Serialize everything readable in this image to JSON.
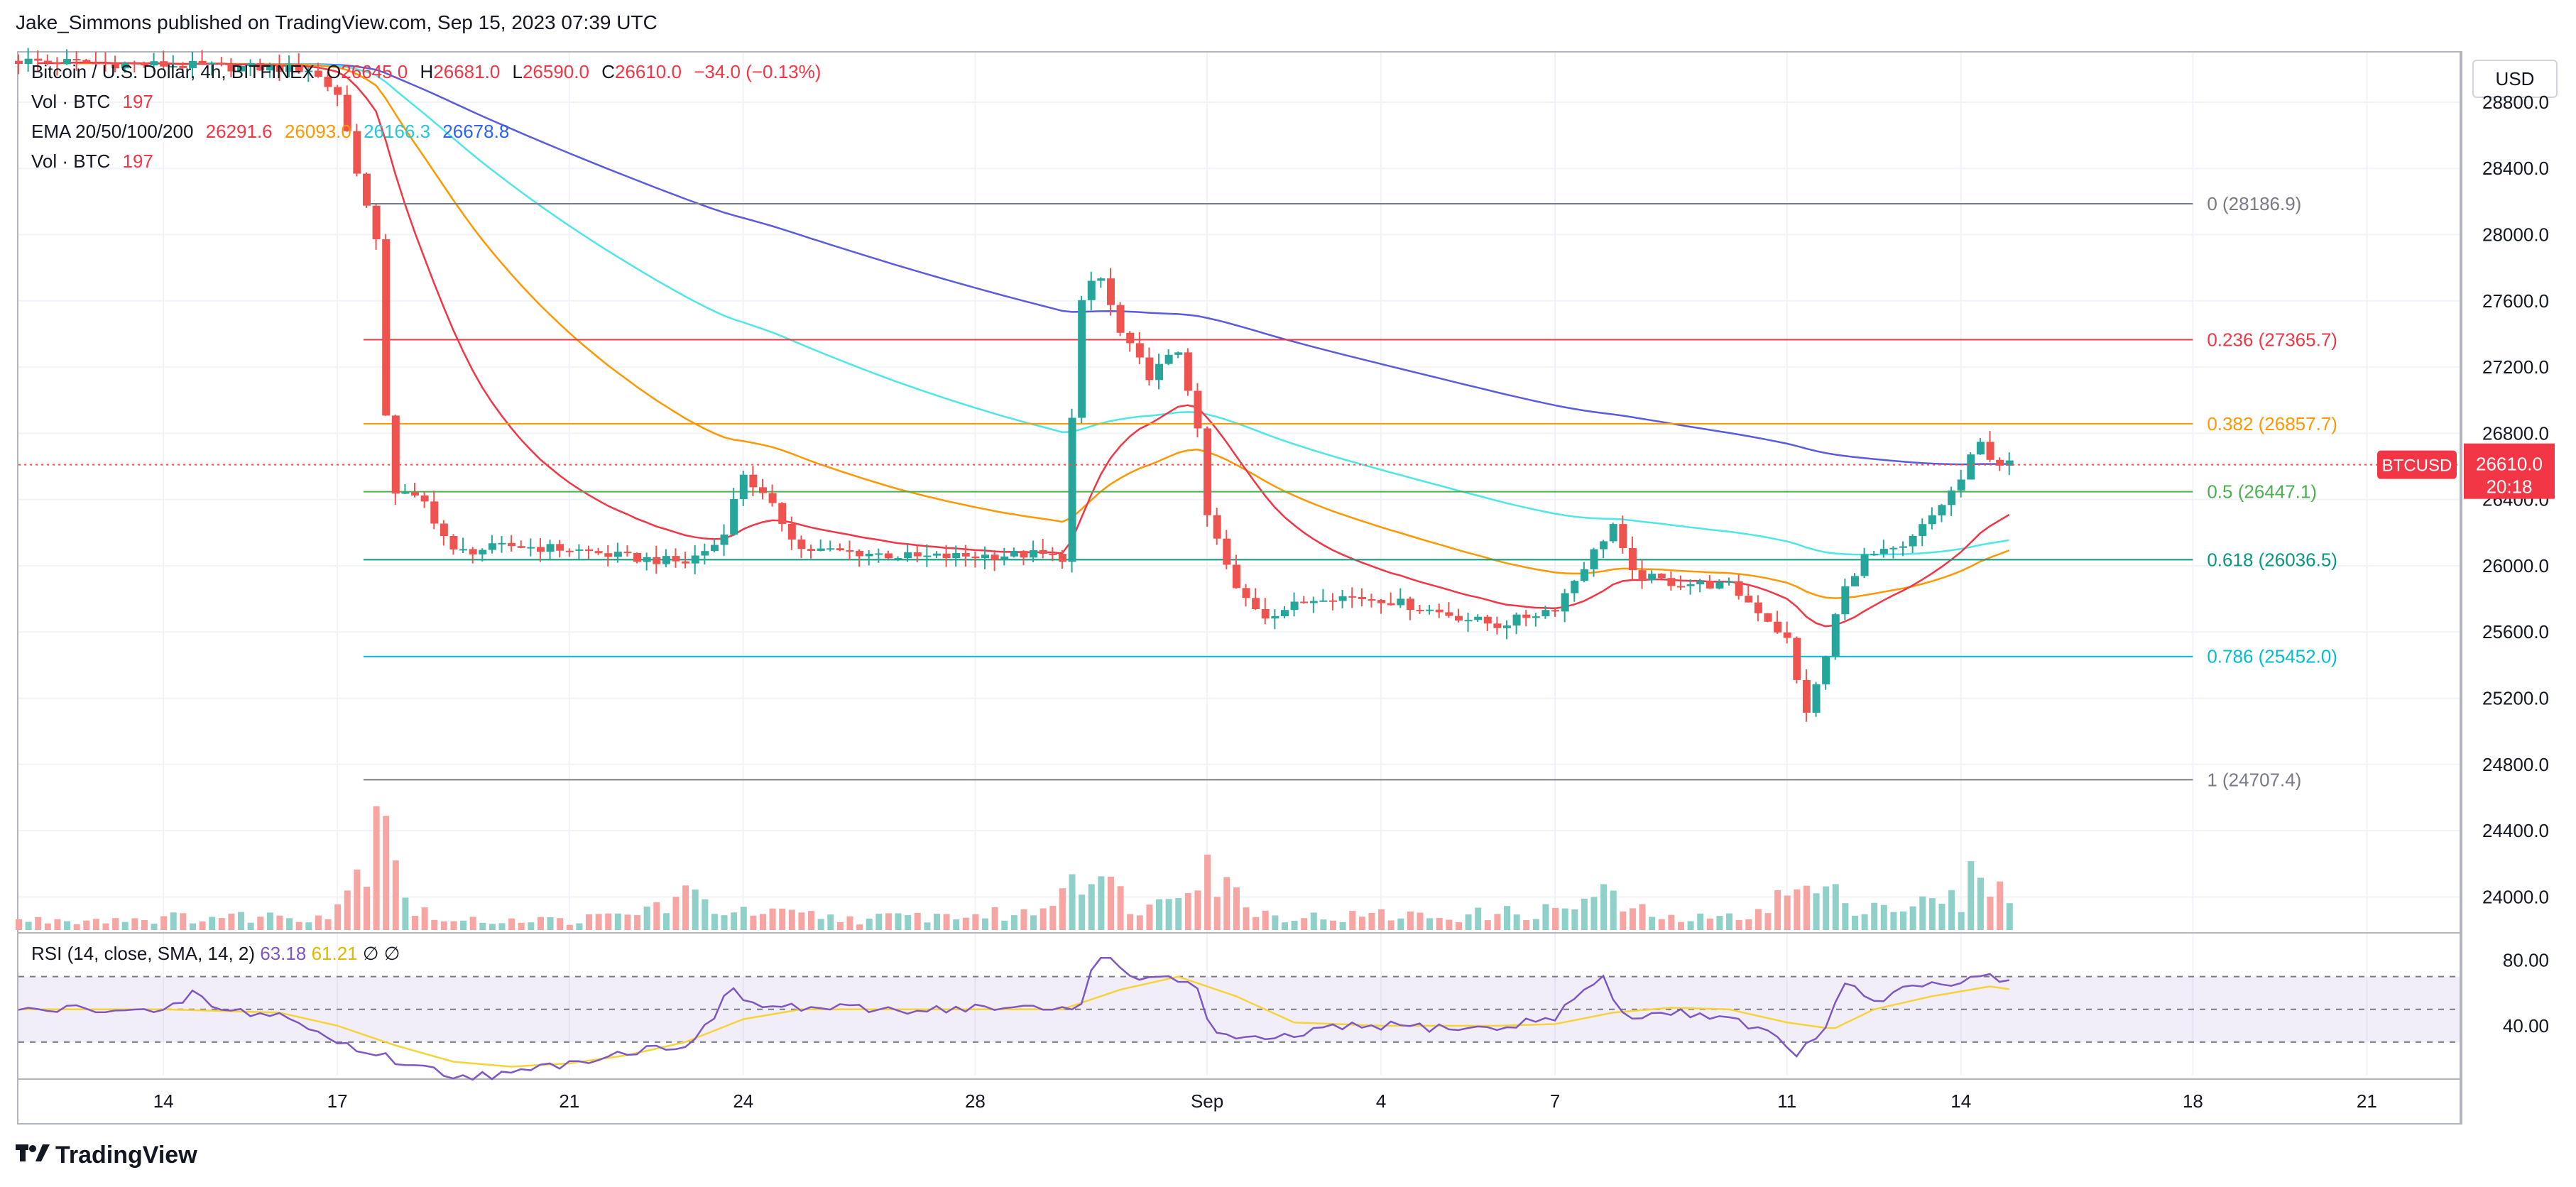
{
  "publisher_line": "Jake_Simmons published on TradingView.com, Sep 15, 2023 07:39 UTC",
  "currency": "USD",
  "footer_brand": "TradingView",
  "legend": {
    "symbol": "Bitcoin / U.S. Dollar, 4h, BITFINEX",
    "open_label": "O",
    "open": "26645.0",
    "high_label": "H",
    "high": "26681.0",
    "low_label": "L",
    "low": "26590.0",
    "close_label": "C",
    "close": "26610.0",
    "change": "−34.0 (−0.13%)",
    "vol1_label": "Vol · BTC",
    "vol1": "197",
    "ema_label": "EMA 20/50/100/200",
    "ema20": "26291.6",
    "ema50": "26093.0",
    "ema100": "26166.3",
    "ema200": "26678.8",
    "vol2_label": "Vol · BTC",
    "vol2": "197"
  },
  "rsi_legend": {
    "label": "RSI (14, close, SMA, 14, 2)",
    "rsi": "63.18",
    "sma": "61.21",
    "sym1": "∅",
    "sym2": "∅"
  },
  "last_price_tag": {
    "symbol": "BTCUSD",
    "price": "26610.0",
    "countdown": "20:18"
  },
  "colors": {
    "up": "#26a69a",
    "down": "#ef5350",
    "ema20": "#f23645",
    "ema50": "#ff9800",
    "ema100": "#4ee6e6",
    "ema200": "#5b5bdf",
    "rsi": "#7e57c2",
    "rsi_sma": "#f7d33a"
  },
  "chart_data": [
    {
      "type": "candlestick",
      "title": "Bitcoin / U.S. Dollar, 4h, BITFINEX",
      "ylim": [
        23800,
        29100
      ],
      "y_ticks": [
        "24000.0",
        "24400.0",
        "24800.0",
        "25200.0",
        "25600.0",
        "26000.0",
        "26400.0",
        "26800.0",
        "27200.0",
        "27600.0",
        "28000.0",
        "28400.0",
        "28800.0"
      ],
      "x_ticks": [
        {
          "label": "14",
          "day": 14
        },
        {
          "label": "17",
          "day": 17
        },
        {
          "label": "21",
          "day": 21
        },
        {
          "label": "24",
          "day": 24
        },
        {
          "label": "28",
          "day": 28
        },
        {
          "label": "Sep",
          "day": 32
        },
        {
          "label": "4",
          "day": 35
        },
        {
          "label": "7",
          "day": 38
        },
        {
          "label": "11",
          "day": 42
        },
        {
          "label": "14",
          "day": 45
        },
        {
          "label": "18",
          "day": 49
        },
        {
          "label": "21",
          "day": 52
        }
      ],
      "x_range_days": [
        11.5,
        53.6
      ],
      "fib_levels": [
        {
          "label": "0 (28186.9)",
          "value": 28186.9,
          "color": "#787b86"
        },
        {
          "label": "0.236 (27365.7)",
          "value": 27365.7,
          "color": "#f23645"
        },
        {
          "label": "0.382 (26857.7)",
          "value": 26857.7,
          "color": "#ff9800"
        },
        {
          "label": "0.5 (26447.1)",
          "value": 26447.1,
          "color": "#4caf50"
        },
        {
          "label": "0.618 (26036.5)",
          "value": 26036.5,
          "color": "#089981"
        },
        {
          "label": "0.786 (25452.0)",
          "value": 25452.0,
          "color": "#00bcd4"
        },
        {
          "label": "1 (24707.4)",
          "value": 24707.4,
          "color": "#787b86"
        }
      ],
      "last_price": 26610.0,
      "anchors_close": [
        [
          11.5,
          29050
        ],
        [
          16.5,
          29000
        ],
        [
          17.0,
          28850
        ],
        [
          17.4,
          28300
        ],
        [
          17.7,
          27900
        ],
        [
          17.85,
          26800
        ],
        [
          18.0,
          26450
        ],
        [
          18.5,
          26380
        ],
        [
          19.0,
          26080
        ],
        [
          20.0,
          26120
        ],
        [
          21.0,
          26100
        ],
        [
          22.0,
          26050
        ],
        [
          23.0,
          26020
        ],
        [
          23.6,
          26150
        ],
        [
          24.0,
          26560
        ],
        [
          24.5,
          26350
        ],
        [
          25.0,
          26100
        ],
        [
          26.0,
          26080
        ],
        [
          27.0,
          26050
        ],
        [
          28.0,
          26060
        ],
        [
          29.0,
          26070
        ],
        [
          29.5,
          26050
        ],
        [
          29.8,
          27550
        ],
        [
          30.1,
          27800
        ],
        [
          30.5,
          27400
        ],
        [
          31.0,
          27150
        ],
        [
          31.5,
          27300
        ],
        [
          31.8,
          26900
        ],
        [
          32.0,
          26300
        ],
        [
          32.5,
          25850
        ],
        [
          33.0,
          25700
        ],
        [
          34.0,
          25820
        ],
        [
          35.0,
          25800
        ],
        [
          36.0,
          25720
        ],
        [
          37.0,
          25640
        ],
        [
          38.0,
          25750
        ],
        [
          38.6,
          26050
        ],
        [
          39.0,
          26250
        ],
        [
          39.3,
          25950
        ],
        [
          40.0,
          25900
        ],
        [
          41.0,
          25880
        ],
        [
          41.6,
          25700
        ],
        [
          42.0,
          25550
        ],
        [
          42.3,
          25100
        ],
        [
          42.6,
          25350
        ],
        [
          42.9,
          25800
        ],
        [
          43.3,
          26050
        ],
        [
          44.0,
          26100
        ],
        [
          44.5,
          26300
        ],
        [
          45.0,
          26520
        ],
        [
          45.3,
          26750
        ],
        [
          45.6,
          26620
        ],
        [
          45.9,
          26610
        ]
      ],
      "volume_anchors": [
        [
          11.5,
          70
        ],
        [
          16.8,
          110
        ],
        [
          17.4,
          420
        ],
        [
          17.8,
          1250
        ],
        [
          18.2,
          160
        ],
        [
          19,
          60
        ],
        [
          20,
          80
        ],
        [
          21,
          70
        ],
        [
          22,
          110
        ],
        [
          23,
          240
        ],
        [
          24,
          120
        ],
        [
          25,
          110
        ],
        [
          26,
          80
        ],
        [
          27,
          100
        ],
        [
          28,
          110
        ],
        [
          29,
          120
        ],
        [
          29.9,
          540
        ],
        [
          30.3,
          300
        ],
        [
          31,
          150
        ],
        [
          31.9,
          600
        ],
        [
          32.2,
          350
        ],
        [
          33,
          120
        ],
        [
          34,
          90
        ],
        [
          35,
          110
        ],
        [
          36,
          100
        ],
        [
          37,
          120
        ],
        [
          38,
          140
        ],
        [
          38.8,
          260
        ],
        [
          39.3,
          150
        ],
        [
          40,
          80
        ],
        [
          41,
          90
        ],
        [
          42,
          250
        ],
        [
          42.3,
          310
        ],
        [
          43,
          220
        ],
        [
          44,
          170
        ],
        [
          45,
          220
        ],
        [
          45.4,
          540
        ],
        [
          45.9,
          90
        ]
      ]
    },
    {
      "type": "line",
      "title": "RSI (14, close, SMA, 14, 2)",
      "ylim": [
        10,
        95
      ],
      "y_ticks": [
        "80.00",
        "40.00"
      ],
      "bands": [
        70,
        50,
        30
      ],
      "series": [
        {
          "name": "RSI",
          "values_anchor": [
            [
              11.5,
              49
            ],
            [
              13,
              51
            ],
            [
              14,
              47
            ],
            [
              14.5,
              60
            ],
            [
              15,
              49
            ],
            [
              16,
              47
            ],
            [
              17,
              30
            ],
            [
              17.8,
              21
            ],
            [
              18.5,
              14
            ],
            [
              19,
              10
            ],
            [
              20,
              10
            ],
            [
              21,
              18
            ],
            [
              22,
              24
            ],
            [
              23,
              29
            ],
            [
              23.4,
              40
            ],
            [
              23.8,
              63
            ],
            [
              24.2,
              52
            ],
            [
              25,
              51
            ],
            [
              26,
              50
            ],
            [
              27,
              50
            ],
            [
              28,
              51
            ],
            [
              29,
              50
            ],
            [
              29.8,
              50
            ],
            [
              30.1,
              86
            ],
            [
              30.5,
              75
            ],
            [
              31,
              68
            ],
            [
              31.8,
              67
            ],
            [
              32.1,
              35
            ],
            [
              33,
              30
            ],
            [
              34,
              38
            ],
            [
              35,
              40
            ],
            [
              36,
              39
            ],
            [
              37,
              38
            ],
            [
              38,
              46
            ],
            [
              38.8,
              70
            ],
            [
              39.2,
              45
            ],
            [
              40,
              48
            ],
            [
              41,
              46
            ],
            [
              41.7,
              35
            ],
            [
              42.1,
              23
            ],
            [
              42.5,
              30
            ],
            [
              43,
              64
            ],
            [
              43.6,
              55
            ],
            [
              44,
              62
            ],
            [
              45,
              66
            ],
            [
              45.5,
              72
            ],
            [
              45.9,
              64
            ]
          ]
        },
        {
          "name": "SMA",
          "values_anchor": [
            [
              11.5,
              50
            ],
            [
              14,
              50
            ],
            [
              16,
              48
            ],
            [
              17,
              40
            ],
            [
              18,
              28
            ],
            [
              19,
              18
            ],
            [
              20,
              15
            ],
            [
              21,
              17
            ],
            [
              22,
              22
            ],
            [
              23,
              30
            ],
            [
              24,
              44
            ],
            [
              25,
              50
            ],
            [
              26,
              50
            ],
            [
              28,
              50
            ],
            [
              29.5,
              50
            ],
            [
              30.5,
              62
            ],
            [
              31.5,
              70
            ],
            [
              32.5,
              58
            ],
            [
              33.5,
              42
            ],
            [
              35,
              40
            ],
            [
              37,
              40
            ],
            [
              38,
              41
            ],
            [
              39,
              48
            ],
            [
              40,
              51
            ],
            [
              41,
              50
            ],
            [
              42,
              42
            ],
            [
              42.8,
              38
            ],
            [
              43.5,
              50
            ],
            [
              44.5,
              58
            ],
            [
              45.5,
              64
            ],
            [
              45.9,
              62
            ]
          ]
        }
      ]
    }
  ]
}
